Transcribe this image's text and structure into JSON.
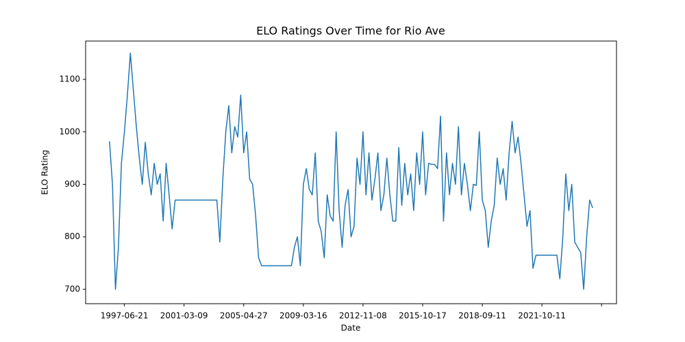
{
  "chart_data": {
    "type": "line",
    "title": "ELO Ratings Over Time for Rio Ave",
    "x_label": "Date",
    "y_label": "ELO Rating",
    "color": "#1f77b4",
    "values": [
      982,
      900,
      700,
      780,
      940,
      1000,
      1070,
      1150,
      1080,
      1010,
      950,
      900,
      980,
      920,
      880,
      940,
      900,
      920,
      830,
      940,
      880,
      815,
      870,
      870,
      870,
      870,
      870,
      870,
      870,
      870,
      870,
      870,
      870,
      870,
      870,
      870,
      870,
      790,
      910,
      1000,
      1050,
      960,
      1010,
      990,
      1070,
      960,
      1000,
      910,
      900,
      840,
      760,
      745,
      745,
      745,
      745,
      745,
      745,
      745,
      745,
      745,
      745,
      745,
      780,
      800,
      745,
      900,
      930,
      890,
      880,
      960,
      830,
      810,
      760,
      880,
      840,
      830,
      1000,
      850,
      780,
      860,
      890,
      800,
      820,
      950,
      900,
      1000,
      880,
      960,
      870,
      910,
      960,
      850,
      880,
      950,
      880,
      830,
      830,
      970,
      860,
      940,
      880,
      920,
      850,
      960,
      900,
      1000,
      880,
      940,
      938,
      938,
      930,
      1030,
      830,
      960,
      880,
      940,
      900,
      1010,
      880,
      940,
      900,
      850,
      900,
      898,
      1000,
      870,
      850,
      780,
      830,
      860,
      950,
      900,
      930,
      870,
      960,
      1020,
      960,
      990,
      940,
      880,
      820,
      850,
      740,
      765,
      765,
      765,
      765,
      765,
      765,
      765,
      765,
      720,
      800,
      920,
      850,
      900,
      790,
      780,
      770,
      700,
      800,
      870,
      855
    ],
    "xlim": [
      -8,
      170
    ],
    "xticks": [
      {
        "value": 5,
        "label": "1997-06-21"
      },
      {
        "value": 25,
        "label": "2001-03-09"
      },
      {
        "value": 45,
        "label": "2005-04-27"
      },
      {
        "value": 65,
        "label": "2009-03-16"
      },
      {
        "value": 85,
        "label": "2012-11-08"
      },
      {
        "value": 105,
        "label": "2015-10-17"
      },
      {
        "value": 125,
        "label": "2018-09-11"
      },
      {
        "value": 145,
        "label": "2021-10-11"
      },
      {
        "value": 165,
        "label": null
      }
    ],
    "ylim": [
      672.6,
      1173
    ],
    "yticks": [
      700,
      800,
      900,
      1000,
      1100
    ]
  }
}
